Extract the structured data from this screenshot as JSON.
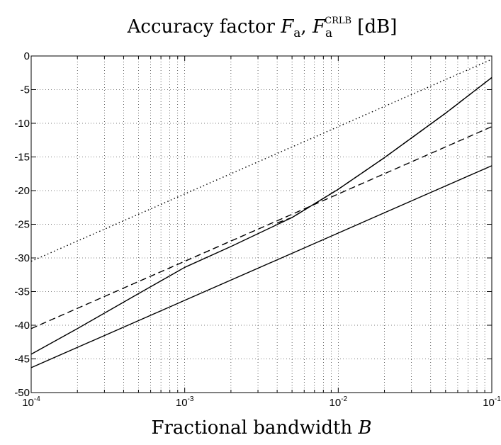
{
  "chart_data": {
    "type": "line",
    "title_parts": {
      "prefix": "Accuracy factor ",
      "sym1": "F",
      "sub1": "a",
      "sep": ", ",
      "sym2": "F",
      "sub2": "a",
      "sup2": "CRLB",
      "suffix": " [dB]"
    },
    "xlabel_parts": {
      "text": "Fractional bandwidth ",
      "sym": "B"
    },
    "x_scale": "log",
    "xlim": [
      0.0001,
      0.1
    ],
    "ylim": [
      -50,
      0
    ],
    "grid": true,
    "grid_style": "dotted",
    "x_ticks": [
      {
        "value": 0.0001,
        "base": "10",
        "exp": "-4"
      },
      {
        "value": 0.001,
        "base": "10",
        "exp": "-3"
      },
      {
        "value": 0.01,
        "base": "10",
        "exp": "-2"
      },
      {
        "value": 0.1,
        "base": "10",
        "exp": "-1"
      }
    ],
    "y_ticks": [
      {
        "value": 0,
        "label": "0"
      },
      {
        "value": -5,
        "label": "-5"
      },
      {
        "value": -10,
        "label": "-10"
      },
      {
        "value": -15,
        "label": "-15"
      },
      {
        "value": -20,
        "label": "-20"
      },
      {
        "value": -25,
        "label": "-25"
      },
      {
        "value": -30,
        "label": "-30"
      },
      {
        "value": -35,
        "label": "-35"
      },
      {
        "value": -40,
        "label": "-40"
      },
      {
        "value": -45,
        "label": "-45"
      },
      {
        "value": -50,
        "label": "-50"
      }
    ],
    "series": [
      {
        "style": "dotted",
        "color": "#000000",
        "x": [
          0.0001,
          0.1
        ],
        "y": [
          -30.5,
          -0.5
        ]
      },
      {
        "style": "dashed",
        "color": "#000000",
        "x": [
          0.0001,
          0.1
        ],
        "y": [
          -40.5,
          -10.5
        ]
      },
      {
        "style": "solid",
        "color": "#000000",
        "x": [
          0.0001,
          0.1
        ],
        "y": [
          -46.3,
          -16.3
        ]
      },
      {
        "style": "solid",
        "color": "#000000",
        "x": [
          0.0001,
          0.0002,
          0.0005,
          0.001,
          0.002,
          0.005,
          0.01,
          0.02,
          0.05,
          0.1
        ],
        "y": [
          -44.3,
          -40.5,
          -35.3,
          -31.4,
          -28.3,
          -24.0,
          -19.8,
          -15.1,
          -8.5,
          -3.2
        ]
      },
      {
        "style": "dashed",
        "color": "#000000",
        "x": [
          0.004,
          0.005,
          0.01,
          0.02,
          0.05,
          0.1
        ],
        "y": [
          -24.8,
          -24.0,
          -19.8,
          -15.1,
          -8.5,
          -3.2
        ]
      }
    ]
  }
}
